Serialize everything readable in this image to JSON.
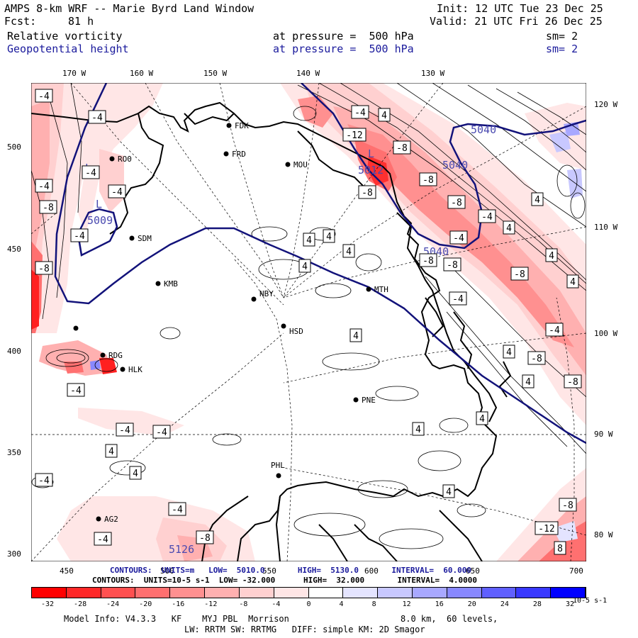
{
  "header": {
    "title": "AMPS 8-km WRF -- Marie Byrd Land Window",
    "init": "Init: 12 UTC Tue 23 Dec 25",
    "fcst_label": "Fcst:",
    "fcst_value": "81 h",
    "valid": "Valid: 21 UTC Fri 26 Dec 25",
    "field1": "Relative vorticity",
    "field1_level": "at pressure =  500 hPa",
    "field1_sm": "sm= 2",
    "field2": "Geopotential height",
    "field2_level": "at pressure =  500 hPa",
    "field2_sm": "sm= 2"
  },
  "axes": {
    "top_longitudes": [
      "170 W",
      "160 W",
      "150 W",
      "140 W",
      "130 W"
    ],
    "right_longitudes": [
      "120 W",
      "110 W",
      "100 W",
      "90 W",
      "80 W"
    ],
    "left_y": [
      "500",
      "450",
      "400",
      "350",
      "300"
    ],
    "bottom_x": [
      "450",
      "500",
      "550",
      "600",
      "650",
      "700"
    ]
  },
  "stations": [
    "FDK",
    "RO0",
    "FRD",
    "MOU",
    "SDM",
    "KMB",
    "NBY",
    "MTH",
    "HSD",
    "RDG",
    "HLK",
    "PNE",
    "PHL",
    "AG2"
  ],
  "height_labels": [
    "5040",
    "5040",
    "5040",
    "5009",
    "5012",
    "5126",
    "L",
    "L",
    "L"
  ],
  "vort_labels": [
    "-4",
    "-8",
    "-12",
    "4",
    "8"
  ],
  "contour_info_blue": {
    "text": "CONTOURS:  UNITS=m   LOW=  5010.0       HIGH=  5130.0       INTERVAL=  60.000"
  },
  "contour_info_black": {
    "text": "CONTOURS:  UNITS=10-5 s-1  LOW= -32.000      HIGH=  32.000       INTERVAL=  4.0000"
  },
  "colorbar": {
    "labels": [
      "-32",
      "-28",
      "-24",
      "-20",
      "-16",
      "-12",
      "-8",
      "-4",
      "0",
      "4",
      "8",
      "12",
      "16",
      "20",
      "24",
      "28",
      "32"
    ],
    "unit": "10-5 s-1",
    "colors": [
      "#ff0000",
      "#ff2828",
      "#ff5050",
      "#ff7070",
      "#ff9090",
      "#ffb0b0",
      "#ffd0d0",
      "#ffe6e6",
      "#ffffff",
      "#ffffff",
      "#e4e4ff",
      "#c8c8ff",
      "#a8a8ff",
      "#8888ff",
      "#6060ff",
      "#3838ff",
      "#0000ff"
    ]
  },
  "footer": {
    "line1_left": "Model Info: V4.3.3   KF    MYJ PBL  Morrison",
    "line1_right": "8.0 km,  60 levels,",
    "line2": "LW: RRTM SW: RRTMG   DIFF: simple KM: 2D Smagor"
  }
}
